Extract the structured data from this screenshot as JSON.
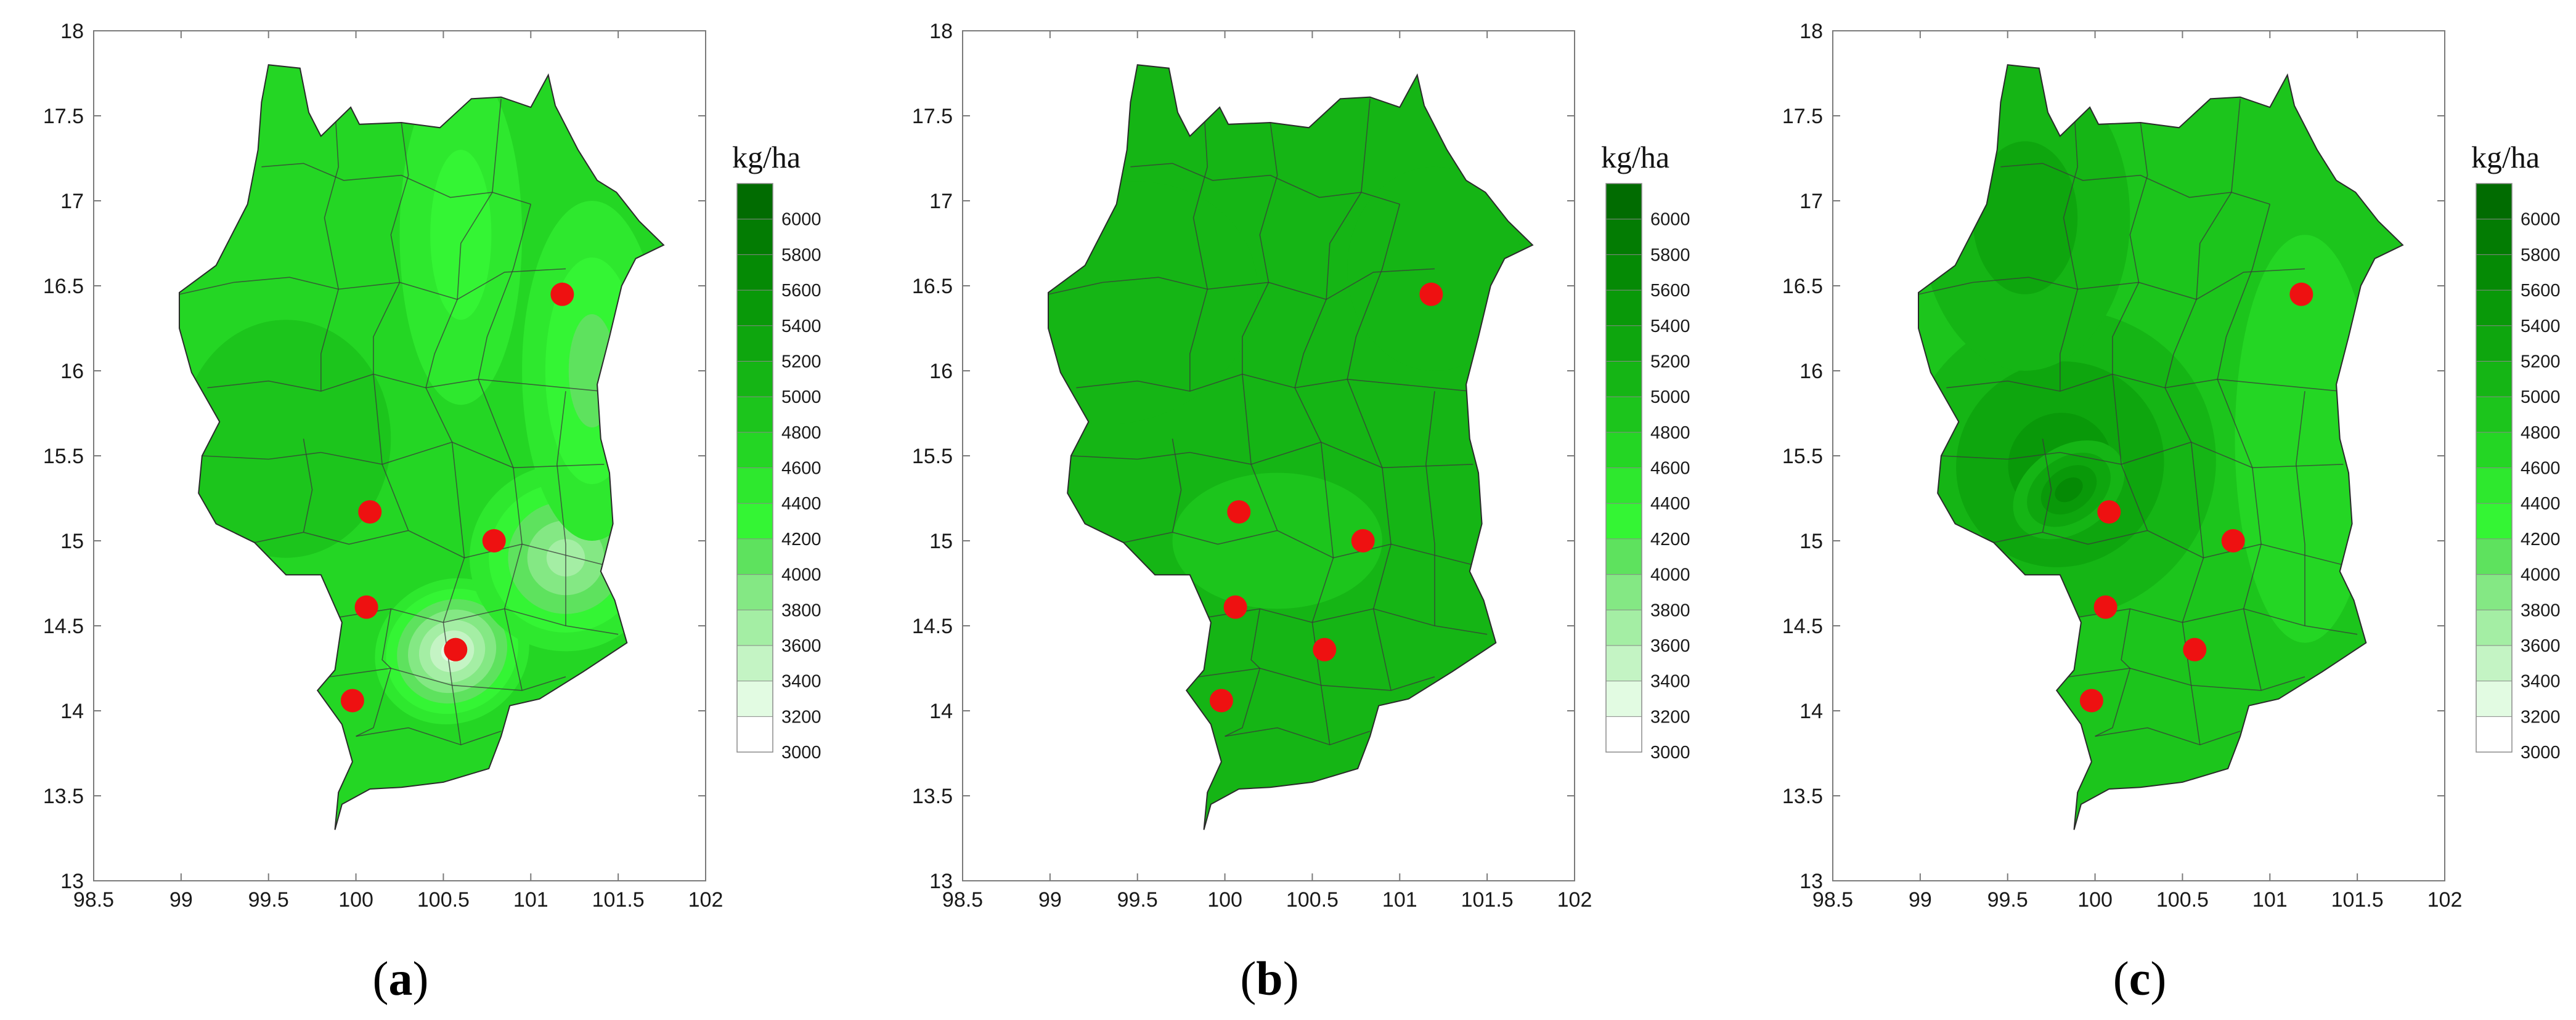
{
  "figure": {
    "panels": [
      {
        "id": "a",
        "caption": {
          "open": "(",
          "letter": "a",
          "close": ")"
        },
        "colorbar_unit": "kg/ha",
        "map_field": {
          "base_value": 4750,
          "centers": [
            {
              "lon": 100.55,
              "lat": 14.35,
              "value": 3450,
              "spread_lon": 0.45,
              "spread_lat": 0.42,
              "rotate": -28
            },
            {
              "lon": 101.2,
              "lat": 14.9,
              "value": 3700,
              "spread_lon": 0.55,
              "spread_lat": 0.55,
              "rotate": 0
            },
            {
              "lon": 101.35,
              "lat": 16.0,
              "value": 4100,
              "spread_lon": 0.4,
              "spread_lat": 1.0,
              "rotate": 0
            },
            {
              "lon": 100.6,
              "lat": 16.8,
              "value": 4400,
              "spread_lon": 0.35,
              "spread_lat": 1.0,
              "rotate": 0
            },
            {
              "lon": 99.6,
              "lat": 15.6,
              "value": 4850,
              "spread_lon": 0.6,
              "spread_lat": 0.7,
              "rotate": 0
            }
          ]
        }
      },
      {
        "id": "b",
        "caption": {
          "open": "(",
          "letter": "b",
          "close": ")"
        },
        "colorbar_unit": "kg/ha",
        "map_field": {
          "base_value": 5000,
          "centers": [
            {
              "lon": 99.4,
              "lat": 16.4,
              "value": 5150,
              "spread_lon": 0.8,
              "spread_lat": 0.7,
              "rotate": -20
            },
            {
              "lon": 101.2,
              "lat": 16.6,
              "value": 5150,
              "spread_lon": 0.5,
              "spread_lat": 0.6,
              "rotate": 0
            },
            {
              "lon": 100.3,
              "lat": 15.0,
              "value": 4950,
              "spread_lon": 0.6,
              "spread_lat": 0.4,
              "rotate": 0
            }
          ]
        }
      },
      {
        "id": "c",
        "caption": {
          "open": "(",
          "letter": "c",
          "close": ")"
        },
        "colorbar_unit": "kg/ha",
        "map_field": {
          "base_value": 4900,
          "centers": [
            {
              "lon": 99.8,
              "lat": 15.45,
              "value": 5550,
              "spread_lon": 0.9,
              "spread_lat": 0.9,
              "rotate": -35
            },
            {
              "lon": 99.85,
              "lat": 15.3,
              "value": 5750,
              "spread_lon": 0.35,
              "spread_lat": 0.25,
              "rotate": -35
            },
            {
              "lon": 99.6,
              "lat": 16.9,
              "value": 5300,
              "spread_lon": 0.6,
              "spread_lat": 0.9,
              "rotate": 0
            },
            {
              "lon": 101.2,
              "lat": 15.6,
              "value": 4750,
              "spread_lon": 0.4,
              "spread_lat": 1.2,
              "rotate": 0
            }
          ]
        }
      }
    ],
    "axes": {
      "x_ticks": [
        "98.5",
        "99",
        "99.5",
        "100",
        "100.5",
        "101",
        "101.5",
        "102"
      ],
      "y_ticks": [
        "13",
        "13.5",
        "14",
        "14.5",
        "15",
        "15.5",
        "16",
        "16.5",
        "17",
        "17.5",
        "18"
      ],
      "xlim": [
        98.5,
        102
      ],
      "ylim": [
        13,
        18
      ]
    },
    "colorbar": {
      "labels": [
        "3000",
        "3200",
        "3400",
        "3600",
        "3800",
        "4000",
        "4200",
        "4400",
        "4600",
        "4800",
        "5000",
        "5200",
        "5400",
        "5600",
        "5800",
        "6000"
      ],
      "bands": [
        {
          "from": 3000,
          "to": 3200,
          "color": "#ffffff"
        },
        {
          "from": 3200,
          "to": 3400,
          "color": "#e2fbe2"
        },
        {
          "from": 3400,
          "to": 3600,
          "color": "#c4f4c4"
        },
        {
          "from": 3600,
          "to": 3800,
          "color": "#a4eea4"
        },
        {
          "from": 3800,
          "to": 4000,
          "color": "#84e884"
        },
        {
          "from": 4000,
          "to": 4200,
          "color": "#5ee25e"
        },
        {
          "from": 4200,
          "to": 4400,
          "color": "#34f534"
        },
        {
          "from": 4400,
          "to": 4600,
          "color": "#2ee82e"
        },
        {
          "from": 4600,
          "to": 4800,
          "color": "#24d624"
        },
        {
          "from": 4800,
          "to": 5000,
          "color": "#1cc51c"
        },
        {
          "from": 5000,
          "to": 5200,
          "color": "#15b515"
        },
        {
          "from": 5200,
          "to": 5400,
          "color": "#0ea60e"
        },
        {
          "from": 5400,
          "to": 5600,
          "color": "#099909"
        },
        {
          "from": 5600,
          "to": 5800,
          "color": "#058a05"
        },
        {
          "from": 5800,
          "to": 6000,
          "color": "#037c03"
        },
        {
          "from": 6000,
          "to": 6200,
          "color": "#016c01"
        }
      ]
    },
    "stations": [
      {
        "lon": 101.18,
        "lat": 16.45
      },
      {
        "lon": 100.08,
        "lat": 15.17
      },
      {
        "lon": 100.79,
        "lat": 15.0
      },
      {
        "lon": 100.06,
        "lat": 14.61
      },
      {
        "lon": 100.57,
        "lat": 14.36
      },
      {
        "lon": 99.98,
        "lat": 14.06
      }
    ],
    "station_color": "#ee1111",
    "boundary": [
      [
        99.5,
        17.8
      ],
      [
        99.68,
        17.78
      ],
      [
        99.73,
        17.52
      ],
      [
        99.8,
        17.38
      ],
      [
        99.97,
        17.55
      ],
      [
        100.02,
        17.45
      ],
      [
        100.26,
        17.46
      ],
      [
        100.48,
        17.43
      ],
      [
        100.66,
        17.6
      ],
      [
        100.83,
        17.61
      ],
      [
        101.0,
        17.55
      ],
      [
        101.1,
        17.74
      ],
      [
        101.14,
        17.56
      ],
      [
        101.27,
        17.3
      ],
      [
        101.38,
        17.12
      ],
      [
        101.49,
        17.05
      ],
      [
        101.62,
        16.88
      ],
      [
        101.76,
        16.74
      ],
      [
        101.6,
        16.66
      ],
      [
        101.52,
        16.5
      ],
      [
        101.45,
        16.2
      ],
      [
        101.38,
        15.92
      ],
      [
        101.4,
        15.6
      ],
      [
        101.45,
        15.4
      ],
      [
        101.47,
        15.1
      ],
      [
        101.4,
        14.82
      ],
      [
        101.48,
        14.65
      ],
      [
        101.55,
        14.4
      ],
      [
        101.3,
        14.23
      ],
      [
        101.05,
        14.07
      ],
      [
        100.88,
        14.03
      ],
      [
        100.83,
        13.85
      ],
      [
        100.76,
        13.66
      ],
      [
        100.5,
        13.58
      ],
      [
        100.26,
        13.55
      ],
      [
        100.08,
        13.54
      ],
      [
        99.92,
        13.45
      ],
      [
        99.88,
        13.3
      ],
      [
        99.9,
        13.52
      ],
      [
        99.98,
        13.7
      ],
      [
        99.92,
        13.92
      ],
      [
        99.78,
        14.12
      ],
      [
        99.88,
        14.24
      ],
      [
        99.92,
        14.52
      ],
      [
        99.8,
        14.8
      ],
      [
        99.6,
        14.8
      ],
      [
        99.42,
        14.99
      ],
      [
        99.2,
        15.1
      ],
      [
        99.1,
        15.28
      ],
      [
        99.12,
        15.5
      ],
      [
        99.22,
        15.7
      ],
      [
        99.06,
        15.99
      ],
      [
        98.99,
        16.25
      ],
      [
        98.99,
        16.46
      ],
      [
        99.2,
        16.62
      ],
      [
        99.38,
        16.98
      ],
      [
        99.44,
        17.3
      ],
      [
        99.46,
        17.58
      ]
    ],
    "districts": [
      [
        [
          99.46,
          17.2
        ],
        [
          99.7,
          17.22
        ],
        [
          99.93,
          17.12
        ],
        [
          100.26,
          17.15
        ],
        [
          100.54,
          17.02
        ],
        [
          100.78,
          17.05
        ],
        [
          101.0,
          16.98
        ]
      ],
      [
        [
          98.99,
          16.45
        ],
        [
          99.3,
          16.52
        ],
        [
          99.62,
          16.55
        ],
        [
          99.9,
          16.48
        ],
        [
          100.25,
          16.52
        ],
        [
          100.58,
          16.42
        ],
        [
          100.85,
          16.58
        ],
        [
          101.2,
          16.6
        ]
      ],
      [
        [
          99.15,
          15.9
        ],
        [
          99.5,
          15.94
        ],
        [
          99.8,
          15.88
        ],
        [
          100.1,
          15.98
        ],
        [
          100.4,
          15.9
        ],
        [
          100.7,
          15.95
        ],
        [
          101.4,
          15.88
        ]
      ],
      [
        [
          99.12,
          15.5
        ],
        [
          99.5,
          15.48
        ],
        [
          99.8,
          15.52
        ],
        [
          100.15,
          15.45
        ],
        [
          100.55,
          15.58
        ],
        [
          100.9,
          15.43
        ],
        [
          101.42,
          15.45
        ]
      ],
      [
        [
          99.42,
          14.99
        ],
        [
          99.7,
          15.05
        ],
        [
          99.96,
          14.98
        ],
        [
          100.3,
          15.06
        ],
        [
          100.62,
          14.9
        ],
        [
          100.95,
          14.98
        ],
        [
          101.45,
          14.85
        ]
      ],
      [
        [
          99.9,
          14.55
        ],
        [
          100.2,
          14.6
        ],
        [
          100.5,
          14.52
        ],
        [
          100.85,
          14.6
        ],
        [
          101.2,
          14.5
        ],
        [
          101.5,
          14.45
        ]
      ],
      [
        [
          99.85,
          14.2
        ],
        [
          100.2,
          14.25
        ],
        [
          100.55,
          14.15
        ],
        [
          100.95,
          14.12
        ],
        [
          101.2,
          14.2
        ]
      ],
      [
        [
          100.0,
          13.85
        ],
        [
          100.3,
          13.9
        ],
        [
          100.6,
          13.8
        ],
        [
          100.83,
          13.88
        ]
      ],
      [
        [
          99.88,
          17.55
        ],
        [
          99.9,
          17.2
        ],
        [
          99.82,
          16.9
        ],
        [
          99.9,
          16.48
        ],
        [
          99.8,
          16.1
        ],
        [
          99.8,
          15.88
        ]
      ],
      [
        [
          100.26,
          17.46
        ],
        [
          100.3,
          17.15
        ],
        [
          100.2,
          16.8
        ],
        [
          100.25,
          16.52
        ],
        [
          100.1,
          16.2
        ],
        [
          100.1,
          15.98
        ],
        [
          100.15,
          15.45
        ],
        [
          100.3,
          15.06
        ]
      ],
      [
        [
          100.83,
          17.6
        ],
        [
          100.78,
          17.05
        ],
        [
          100.6,
          16.75
        ],
        [
          100.58,
          16.42
        ],
        [
          100.45,
          16.1
        ],
        [
          100.4,
          15.9
        ],
        [
          100.55,
          15.58
        ],
        [
          100.62,
          14.9
        ],
        [
          100.5,
          14.52
        ],
        [
          100.55,
          14.15
        ],
        [
          100.6,
          13.8
        ]
      ],
      [
        [
          101.0,
          16.98
        ],
        [
          100.9,
          16.6
        ],
        [
          100.75,
          16.2
        ],
        [
          100.7,
          15.95
        ],
        [
          100.9,
          15.43
        ],
        [
          100.95,
          14.98
        ],
        [
          100.85,
          14.6
        ],
        [
          100.95,
          14.12
        ]
      ],
      [
        [
          99.7,
          15.6
        ],
        [
          99.75,
          15.3
        ],
        [
          99.7,
          15.05
        ]
      ],
      [
        [
          100.2,
          14.6
        ],
        [
          100.15,
          14.3
        ],
        [
          100.2,
          14.25
        ],
        [
          100.1,
          13.9
        ],
        [
          100.0,
          13.85
        ]
      ],
      [
        [
          101.2,
          15.88
        ],
        [
          101.15,
          15.45
        ],
        [
          101.2,
          14.98
        ],
        [
          101.2,
          14.5
        ]
      ]
    ]
  }
}
